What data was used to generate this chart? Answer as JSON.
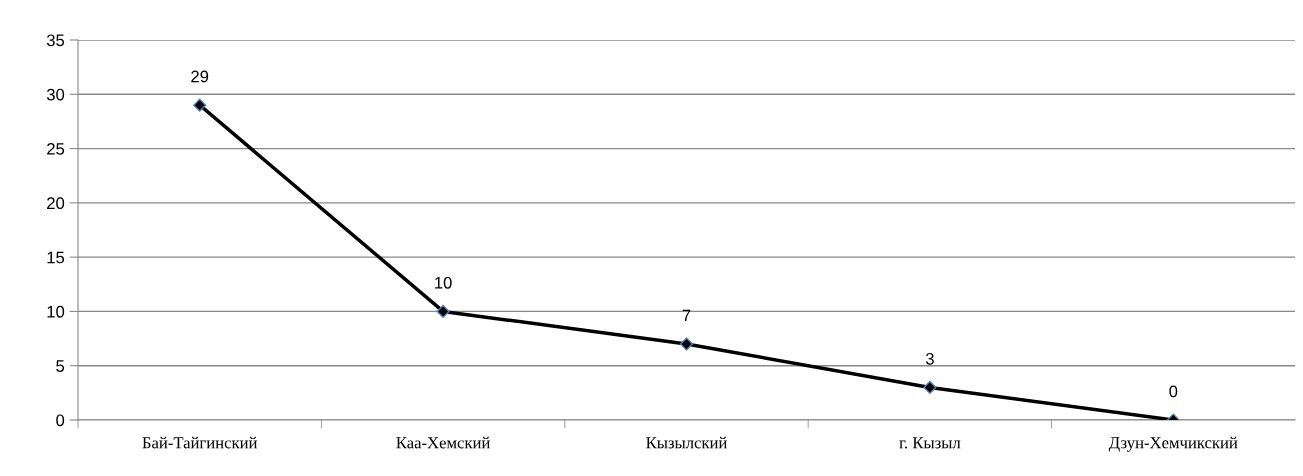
{
  "chart_data": {
    "type": "line",
    "categories": [
      "Бай-Тайгинский",
      "Каа-Хемский",
      "Кызылский",
      "г. Кызыл",
      "Дзун-Хемчикский"
    ],
    "series": [
      {
        "color": "#000000",
        "values": [
          29,
          10,
          7,
          3,
          0
        ]
      }
    ],
    "ylim": [
      0,
      35
    ],
    "yticks": [
      0,
      5,
      10,
      15,
      20,
      25,
      30,
      35
    ],
    "grid": "y",
    "marker": "diamond",
    "line_style": "solid",
    "data_labels": true
  }
}
